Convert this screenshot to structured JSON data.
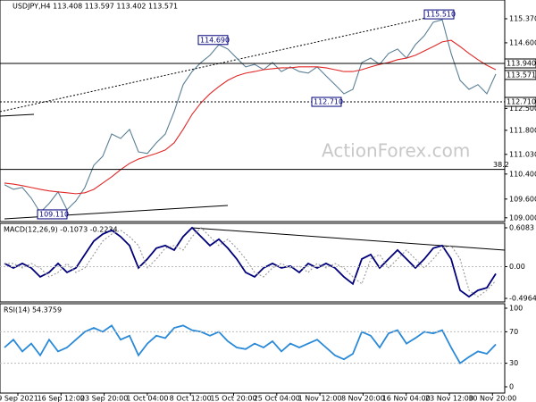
{
  "chart_data": {
    "type": "line",
    "title": "USDJPY,H4 113.408 113.597 113.402 113.571",
    "watermark": "ActionForex.com",
    "x_labels": [
      "9 Sep 2021",
      "16 Sep 12:00",
      "23 Sep 20:00",
      "1 Oct 04:00",
      "8 Oct 12:00",
      "15 Oct 20:00",
      "25 Oct 04:00",
      "1 Nov 12:00",
      "8 Nov 20:00",
      "16 Nov 04:00",
      "23 Nov 12:00",
      "30 Nov 20:00"
    ],
    "ylim": [
      108.88,
      115.97
    ],
    "yticks": [
      {
        "value": 115.37,
        "label": "115.370"
      },
      {
        "value": 114.6,
        "label": "114.600"
      },
      {
        "value": 112.5,
        "label": "112.500"
      },
      {
        "value": 111.8,
        "label": "111.800"
      },
      {
        "value": 111.03,
        "label": "111.030"
      },
      {
        "value": 110.4,
        "label": "110.400"
      },
      {
        "value": 109.6,
        "label": "109.600"
      },
      {
        "value": 109.0,
        "label": "109.000"
      }
    ],
    "price_labels": [
      {
        "value": 113.94,
        "label": "113.940"
      },
      {
        "value": 113.571,
        "label": "113.571"
      },
      {
        "value": 112.71,
        "label": "112.710"
      }
    ],
    "annotations": [
      {
        "value": 115.51,
        "label": "115.510"
      },
      {
        "value": 114.69,
        "label": "114.690"
      },
      {
        "value": 112.71,
        "label": "112.710"
      },
      {
        "value": 109.11,
        "label": "109.110"
      }
    ],
    "levels": [
      {
        "value": 110.55,
        "label": "38.2"
      }
    ],
    "series": [
      {
        "name": "USDJPY",
        "color": "#5a7f96",
        "values": [
          110.06,
          109.91,
          109.97,
          109.63,
          109.17,
          109.46,
          109.83,
          109.26,
          109.54,
          109.97,
          110.68,
          110.97,
          111.68,
          111.54,
          111.83,
          111.11,
          111.06,
          111.4,
          111.68,
          112.4,
          113.26,
          113.68,
          113.97,
          114.2,
          114.54,
          114.4,
          114.11,
          113.83,
          113.91,
          113.74,
          113.97,
          113.68,
          113.83,
          113.68,
          113.63,
          113.83,
          113.54,
          113.26,
          112.97,
          113.11,
          113.97,
          114.11,
          113.91,
          114.26,
          114.4,
          114.11,
          114.54,
          114.83,
          115.26,
          115.34,
          114.26,
          113.4,
          113.11,
          113.26,
          112.97,
          113.6
        ]
      },
      {
        "name": "MA",
        "color": "#e02828",
        "values": [
          110.11,
          110.08,
          110.03,
          109.97,
          109.91,
          109.86,
          109.83,
          109.8,
          109.77,
          109.8,
          109.91,
          110.11,
          110.31,
          110.54,
          110.74,
          110.88,
          110.97,
          111.06,
          111.17,
          111.4,
          111.83,
          112.31,
          112.68,
          112.97,
          113.2,
          113.4,
          113.54,
          113.63,
          113.68,
          113.74,
          113.77,
          113.8,
          113.8,
          113.83,
          113.83,
          113.83,
          113.8,
          113.74,
          113.68,
          113.68,
          113.74,
          113.83,
          113.91,
          113.97,
          114.06,
          114.11,
          114.2,
          114.34,
          114.48,
          114.63,
          114.68,
          114.48,
          114.26,
          114.06,
          113.88,
          113.74
        ]
      }
    ],
    "macd": {
      "title": "MACD(12,26,9) -0.1073 -0.2234",
      "ylim": [
        -0.552,
        0.678
      ],
      "yticks": [
        0.6083,
        {
          "value": 0,
          "label": "0.00"
        },
        -0.4964
      ],
      "series": [
        {
          "name": "MACD",
          "color": "#00007a",
          "values": [
            0.05,
            -0.02,
            0.05,
            -0.02,
            -0.16,
            -0.09,
            0.05,
            -0.09,
            -0.02,
            0.19,
            0.4,
            0.51,
            0.57,
            0.47,
            0.33,
            -0.02,
            0.12,
            0.29,
            0.33,
            0.26,
            0.47,
            0.61,
            0.47,
            0.33,
            0.43,
            0.29,
            0.12,
            -0.09,
            -0.16,
            -0.02,
            0.05,
            -0.02,
            0.01,
            -0.09,
            0.05,
            -0.02,
            0.05,
            -0.02,
            -0.16,
            -0.27,
            0.12,
            0.19,
            -0.02,
            0.12,
            0.26,
            0.12,
            -0.02,
            0.12,
            0.29,
            0.33,
            0.12,
            -0.37,
            -0.47,
            -0.37,
            -0.33,
            -0.11
          ]
        },
        {
          "name": "Signal",
          "color": "#999999",
          "values": [
            0.05,
            0.05,
            -0.02,
            0.05,
            -0.02,
            -0.16,
            -0.09,
            0.05,
            -0.09,
            -0.02,
            0.19,
            0.4,
            0.51,
            0.57,
            0.47,
            0.33,
            -0.02,
            0.12,
            0.29,
            0.33,
            0.26,
            0.47,
            0.61,
            0.47,
            0.33,
            0.43,
            0.29,
            0.12,
            -0.09,
            -0.16,
            -0.02,
            0.05,
            -0.02,
            0.01,
            -0.09,
            0.05,
            -0.02,
            0.05,
            -0.02,
            -0.16,
            -0.27,
            0.12,
            0.19,
            -0.02,
            0.12,
            0.26,
            0.12,
            -0.02,
            0.12,
            0.29,
            0.33,
            0.12,
            -0.37,
            -0.47,
            -0.37,
            -0.22
          ]
        }
      ]
    },
    "rsi": {
      "title": "RSI(14) 54.3759",
      "ylim": [
        0,
        100
      ],
      "yticks": [
        100,
        70,
        30,
        0
      ],
      "series": [
        {
          "name": "RSI",
          "color": "#2a8ad8",
          "values": [
            50,
            60,
            45,
            55,
            40,
            60,
            45,
            50,
            60,
            70,
            75,
            70,
            78,
            60,
            65,
            40,
            55,
            65,
            62,
            75,
            78,
            72,
            70,
            65,
            70,
            58,
            50,
            48,
            55,
            50,
            58,
            45,
            55,
            50,
            55,
            60,
            50,
            40,
            35,
            42,
            70,
            65,
            50,
            68,
            72,
            55,
            62,
            70,
            68,
            72,
            50,
            30,
            38,
            45,
            42,
            54
          ]
        }
      ]
    }
  }
}
